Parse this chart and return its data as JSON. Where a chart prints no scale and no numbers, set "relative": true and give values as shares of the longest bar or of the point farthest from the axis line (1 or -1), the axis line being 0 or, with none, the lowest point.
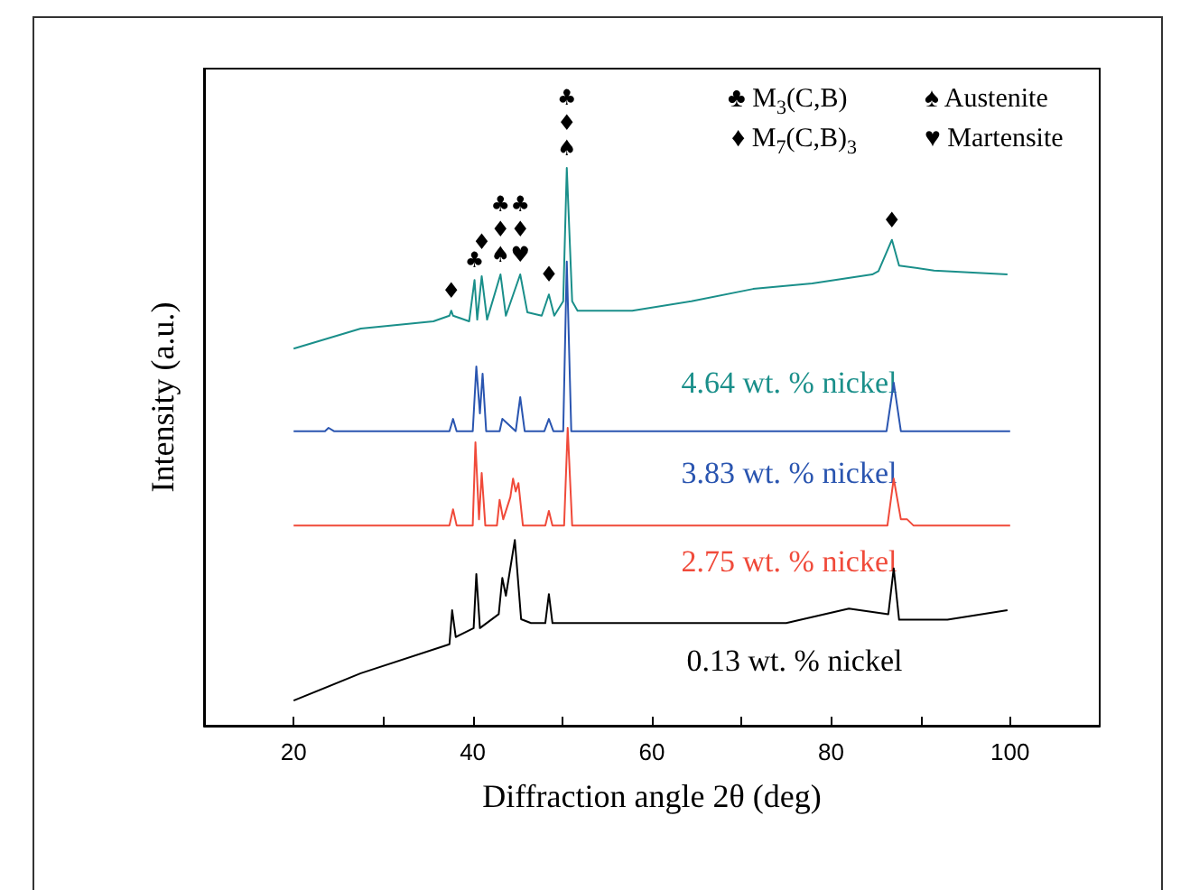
{
  "chart_data": {
    "type": "line",
    "relative": true,
    "xlabel": "Diffraction angle 2θ (deg)",
    "ylabel": "Intensity (a.u.)",
    "xlim": [
      10,
      110
    ],
    "xticks": [
      20,
      {
        "value": 30,
        "label": null
      },
      40,
      {
        "value": 50,
        "label": null
      },
      60,
      {
        "value": 70,
        "label": null
      },
      80,
      {
        "value": 90,
        "label": null
      },
      100
    ],
    "series": [
      {
        "name": "4.64 wt. % nickel",
        "color": "#1a8f8a",
        "x": [
          20,
          27.5,
          35.6,
          37.4,
          37.6,
          37.8,
          39.6,
          40.2,
          40.5,
          41.0,
          41.6,
          43.1,
          43.7,
          45.3,
          46.1,
          47.7,
          48.5,
          49.1,
          50.1,
          50.5,
          51.1,
          51.7,
          57.8,
          64.4,
          71.3,
          77.9,
          84.6,
          85.3,
          86.8,
          87.6,
          91.5,
          99.7
        ],
        "values": [
          0.676,
          0.712,
          0.725,
          0.735,
          0.744,
          0.735,
          0.725,
          0.799,
          0.728,
          0.806,
          0.728,
          0.809,
          0.735,
          0.809,
          0.741,
          0.735,
          0.773,
          0.735,
          0.761,
          1.0,
          0.761,
          0.744,
          0.744,
          0.761,
          0.783,
          0.793,
          0.809,
          0.815,
          0.871,
          0.825,
          0.816,
          0.809
        ]
      },
      {
        "name": "3.83 wt. % nickel",
        "color": "#2a55b0",
        "x": [
          20,
          23.5,
          23.9,
          24.5,
          37.4,
          37.8,
          38.2,
          40.0,
          40.4,
          40.8,
          41.1,
          41.5,
          43.0,
          43.3,
          44.8,
          45.3,
          45.8,
          48.0,
          48.5,
          49.0,
          50.1,
          50.5,
          51.0,
          60,
          70,
          86.2,
          87.0,
          87.8,
          100
        ],
        "values": [
          0.528,
          0.528,
          0.534,
          0.528,
          0.528,
          0.55,
          0.528,
          0.528,
          0.644,
          0.56,
          0.631,
          0.528,
          0.528,
          0.55,
          0.528,
          0.589,
          0.528,
          0.528,
          0.55,
          0.528,
          0.528,
          0.832,
          0.528,
          0.528,
          0.528,
          0.528,
          0.615,
          0.528,
          0.528
        ]
      },
      {
        "name": "2.75 wt. % nickel",
        "color": "#f04a3a",
        "x": [
          20,
          37.4,
          37.8,
          38.2,
          40.0,
          40.3,
          40.7,
          41.0,
          41.4,
          42.7,
          43.0,
          43.4,
          44.2,
          44.5,
          44.8,
          45.1,
          45.6,
          48.1,
          48.5,
          48.9,
          50.2,
          50.6,
          51.1,
          60,
          70,
          86.3,
          87.0,
          87.8,
          88.5,
          89.2,
          100
        ],
        "values": [
          0.359,
          0.359,
          0.388,
          0.359,
          0.359,
          0.508,
          0.37,
          0.453,
          0.359,
          0.359,
          0.405,
          0.37,
          0.41,
          0.443,
          0.42,
          0.435,
          0.359,
          0.359,
          0.385,
          0.359,
          0.359,
          0.534,
          0.359,
          0.359,
          0.359,
          0.359,
          0.443,
          0.37,
          0.37,
          0.359,
          0.359
        ]
      },
      {
        "name": "0.13 wt. % nickel",
        "color": "#000000",
        "x": [
          20,
          27.5,
          37.4,
          37.7,
          38.1,
          40.1,
          40.4,
          40.8,
          42.9,
          43.3,
          43.7,
          44.7,
          45.4,
          46.5,
          48.1,
          48.5,
          48.9,
          60,
          75,
          82,
          86.4,
          87.0,
          87.6,
          93,
          99.7
        ],
        "values": [
          0.045,
          0.094,
          0.146,
          0.207,
          0.159,
          0.175,
          0.272,
          0.175,
          0.2,
          0.265,
          0.233,
          0.333,
          0.191,
          0.184,
          0.184,
          0.236,
          0.184,
          0.184,
          0.184,
          0.21,
          0.2,
          0.282,
          0.19,
          0.19,
          0.207
        ]
      }
    ],
    "annotations": [
      {
        "text": "♦",
        "x": 37.6,
        "y": 0.744
      },
      {
        "text": "♣",
        "x": 40.2,
        "y": 0.799
      },
      {
        "text": "♦",
        "x": 41.0,
        "y": 0.806
      },
      {
        "text": "♣♦♠",
        "x": 43.1,
        "y": 0.809
      },
      {
        "text": "♣♦♥",
        "x": 45.3,
        "y": 0.809
      },
      {
        "text": "♦",
        "x": 48.5,
        "y": 0.773
      },
      {
        "text": "♣♦♠",
        "x": 50.5,
        "y": 1.0
      },
      {
        "text": "♦",
        "x": 86.8,
        "y": 0.871
      },
      "♣ M$_{3}$(C,B)",
      "♠ Austenite",
      "♦ M$_{7}$(C,B)$_{3}$",
      "♥ Martensite"
    ]
  }
}
